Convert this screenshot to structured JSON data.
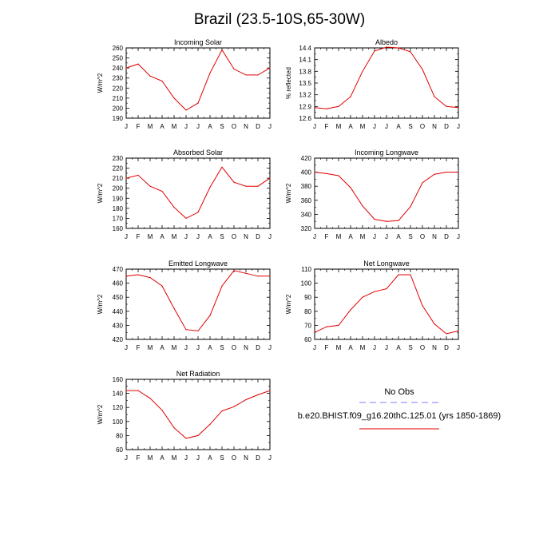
{
  "page_title": "Brazil (23.5-10S,65-30W)",
  "months": [
    "J",
    "F",
    "M",
    "A",
    "M",
    "J",
    "J",
    "A",
    "S",
    "O",
    "N",
    "D",
    "J"
  ],
  "legend": {
    "obs_label": "No Obs",
    "obs_color": "#7b7bff",
    "model_label": "b.e20.BHIST.f09_g16.20thC.125.01 (yrs 1850-1869)",
    "model_color": "#e00000"
  },
  "chart_data": [
    {
      "type": "line",
      "title": "Incoming Solar",
      "ylabel": "W/m^2",
      "ylim": [
        190,
        260
      ],
      "yticks": [
        190,
        200,
        210,
        220,
        230,
        240,
        250,
        260
      ],
      "ytick_labels": [
        "190",
        "200",
        "210",
        "220",
        "230",
        "240",
        "250",
        "260"
      ],
      "x": [
        "J",
        "F",
        "M",
        "A",
        "M",
        "J",
        "J",
        "A",
        "S",
        "O",
        "N",
        "D",
        "J"
      ],
      "series": [
        {
          "values": [
            240,
            244,
            232,
            227,
            210,
            198,
            205,
            235,
            258,
            239,
            233,
            233,
            240
          ]
        }
      ]
    },
    {
      "type": "line",
      "title": "Albedo",
      "ylabel": "% reflected",
      "ylim": [
        12.6,
        14.4
      ],
      "yticks": [
        12.6,
        12.9,
        13.2,
        13.5,
        13.8,
        14.1,
        14.4
      ],
      "ytick_labels": [
        "12.6",
        "12.9",
        "13.2",
        "13.5",
        "13.8",
        "14.1",
        "14.4"
      ],
      "x": [
        "J",
        "F",
        "M",
        "A",
        "M",
        "J",
        "J",
        "A",
        "S",
        "O",
        "N",
        "D",
        "J"
      ],
      "series": [
        {
          "values": [
            12.87,
            12.84,
            12.9,
            13.15,
            13.8,
            14.32,
            14.42,
            14.4,
            14.3,
            13.85,
            13.15,
            12.9,
            12.87
          ]
        }
      ]
    },
    {
      "type": "line",
      "title": "Absorbed Solar",
      "ylabel": "W/m^2",
      "ylim": [
        160,
        230
      ],
      "yticks": [
        160,
        170,
        180,
        190,
        200,
        210,
        220,
        230
      ],
      "ytick_labels": [
        "160",
        "170",
        "180",
        "190",
        "200",
        "210",
        "220",
        "230"
      ],
      "x": [
        "J",
        "F",
        "M",
        "A",
        "M",
        "J",
        "J",
        "A",
        "S",
        "O",
        "N",
        "D",
        "J"
      ],
      "series": [
        {
          "values": [
            210,
            213,
            202,
            197,
            181,
            170,
            176,
            201,
            221,
            206,
            202,
            202,
            210
          ]
        }
      ]
    },
    {
      "type": "line",
      "title": "Incoming Longwave",
      "ylabel": "W/m^2",
      "ylim": [
        320,
        420
      ],
      "yticks": [
        320,
        340,
        360,
        380,
        400,
        420
      ],
      "ytick_labels": [
        "320",
        "340",
        "360",
        "380",
        "400",
        "420"
      ],
      "x": [
        "J",
        "F",
        "M",
        "A",
        "M",
        "J",
        "J",
        "A",
        "S",
        "O",
        "N",
        "D",
        "J"
      ],
      "series": [
        {
          "values": [
            400,
            398,
            395,
            378,
            352,
            333,
            330,
            331,
            351,
            385,
            397,
            400,
            400
          ]
        }
      ]
    },
    {
      "type": "line",
      "title": "Emitted Longwave",
      "ylabel": "W/m^2",
      "ylim": [
        420,
        470
      ],
      "yticks": [
        420,
        430,
        440,
        450,
        460,
        470
      ],
      "ytick_labels": [
        "420",
        "430",
        "440",
        "450",
        "460",
        "470"
      ],
      "x": [
        "J",
        "F",
        "M",
        "A",
        "M",
        "J",
        "J",
        "A",
        "S",
        "O",
        "N",
        "D",
        "J"
      ],
      "series": [
        {
          "values": [
            465,
            466,
            464,
            458,
            442,
            427,
            426,
            437,
            458,
            469,
            467,
            465,
            465
          ]
        }
      ]
    },
    {
      "type": "line",
      "title": "Net Longwave",
      "ylabel": "W/m^2",
      "ylim": [
        60,
        110
      ],
      "yticks": [
        60,
        70,
        80,
        90,
        100,
        110
      ],
      "ytick_labels": [
        "60",
        "70",
        "80",
        "90",
        "100",
        "110"
      ],
      "x": [
        "J",
        "F",
        "M",
        "A",
        "M",
        "J",
        "J",
        "A",
        "S",
        "O",
        "N",
        "D",
        "J"
      ],
      "series": [
        {
          "values": [
            65,
            69,
            70,
            81,
            90,
            94,
            96,
            106,
            106,
            84,
            71,
            64,
            66
          ]
        }
      ]
    },
    {
      "type": "line",
      "title": "Net Radiation",
      "ylabel": "W/m^2",
      "ylim": [
        60,
        160
      ],
      "yticks": [
        60,
        80,
        100,
        120,
        140,
        160
      ],
      "ytick_labels": [
        "60",
        "80",
        "100",
        "120",
        "140",
        "160"
      ],
      "x": [
        "J",
        "F",
        "M",
        "A",
        "M",
        "J",
        "J",
        "A",
        "S",
        "O",
        "N",
        "D",
        "J"
      ],
      "series": [
        {
          "values": [
            144,
            144,
            133,
            116,
            91,
            76,
            80,
            96,
            115,
            121,
            131,
            138,
            144
          ]
        }
      ]
    }
  ]
}
